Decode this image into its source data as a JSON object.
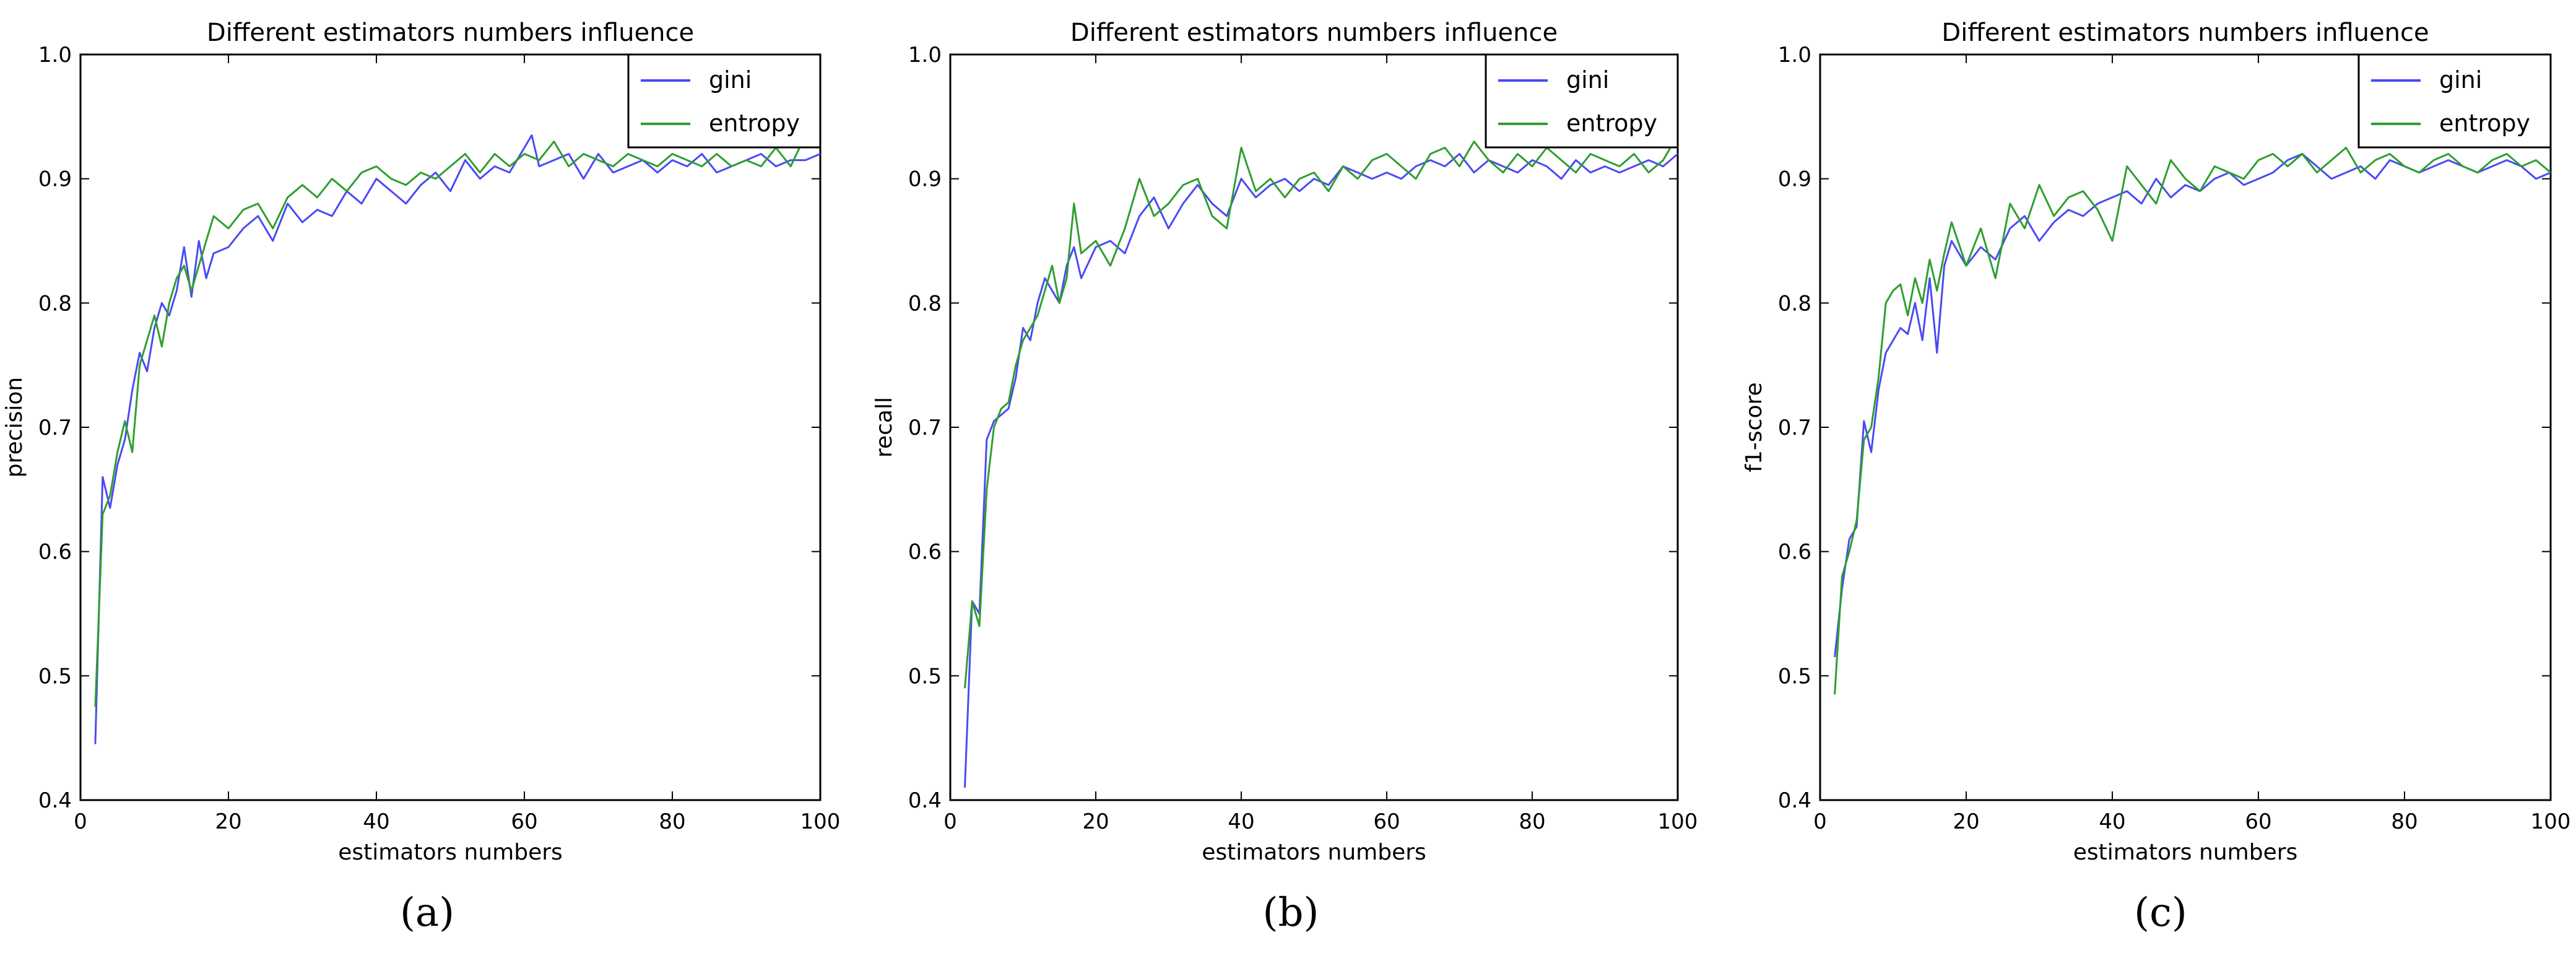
{
  "colors": {
    "gini": "#4a4af5",
    "entropy": "#2e9e2e"
  },
  "panels": [
    {
      "sub_label": "(a)"
    },
    {
      "sub_label": "(b)"
    },
    {
      "sub_label": "(c)"
    }
  ],
  "chart_data": [
    {
      "type": "line",
      "title": "Different estimators numbers influence",
      "xlabel": "estimators numbers",
      "ylabel": "precision",
      "xlim": [
        0,
        100
      ],
      "ylim": [
        0.4,
        1.0
      ],
      "xticks": [
        0,
        20,
        40,
        60,
        80,
        100
      ],
      "yticks": [
        0.4,
        0.5,
        0.6,
        0.7,
        0.8,
        0.9,
        1.0
      ],
      "legend_position": "top-right",
      "grid": false,
      "series": [
        {
          "name": "gini",
          "x": [
            2,
            3,
            4,
            5,
            6,
            7,
            8,
            9,
            10,
            11,
            12,
            13,
            14,
            15,
            16,
            17,
            18,
            20,
            22,
            24,
            26,
            28,
            30,
            32,
            34,
            36,
            38,
            40,
            42,
            44,
            46,
            48,
            50,
            52,
            54,
            56,
            58,
            60,
            61,
            62,
            64,
            66,
            68,
            70,
            72,
            74,
            76,
            78,
            80,
            82,
            84,
            86,
            88,
            90,
            92,
            94,
            96,
            98,
            100
          ],
          "values": [
            0.445,
            0.66,
            0.635,
            0.67,
            0.69,
            0.73,
            0.76,
            0.745,
            0.78,
            0.8,
            0.79,
            0.81,
            0.845,
            0.805,
            0.85,
            0.82,
            0.84,
            0.845,
            0.86,
            0.87,
            0.85,
            0.88,
            0.865,
            0.875,
            0.87,
            0.89,
            0.88,
            0.9,
            0.89,
            0.88,
            0.895,
            0.905,
            0.89,
            0.915,
            0.9,
            0.91,
            0.905,
            0.925,
            0.935,
            0.91,
            0.915,
            0.92,
            0.9,
            0.92,
            0.905,
            0.91,
            0.915,
            0.905,
            0.915,
            0.91,
            0.92,
            0.905,
            0.91,
            0.915,
            0.92,
            0.91,
            0.915,
            0.915,
            0.92
          ]
        },
        {
          "name": "entropy",
          "x": [
            2,
            3,
            4,
            5,
            6,
            7,
            8,
            9,
            10,
            11,
            12,
            13,
            14,
            15,
            16,
            17,
            18,
            20,
            22,
            24,
            26,
            28,
            30,
            32,
            34,
            36,
            38,
            40,
            42,
            44,
            46,
            48,
            50,
            52,
            54,
            56,
            58,
            60,
            62,
            64,
            66,
            68,
            70,
            72,
            74,
            76,
            78,
            80,
            82,
            84,
            86,
            88,
            90,
            92,
            94,
            96,
            98,
            100
          ],
          "values": [
            0.475,
            0.63,
            0.645,
            0.68,
            0.705,
            0.68,
            0.75,
            0.77,
            0.79,
            0.765,
            0.8,
            0.82,
            0.83,
            0.81,
            0.83,
            0.85,
            0.87,
            0.86,
            0.875,
            0.88,
            0.86,
            0.885,
            0.895,
            0.885,
            0.9,
            0.89,
            0.905,
            0.91,
            0.9,
            0.895,
            0.905,
            0.9,
            0.91,
            0.92,
            0.905,
            0.92,
            0.91,
            0.92,
            0.915,
            0.93,
            0.91,
            0.92,
            0.915,
            0.91,
            0.92,
            0.915,
            0.91,
            0.92,
            0.915,
            0.91,
            0.92,
            0.91,
            0.915,
            0.91,
            0.925,
            0.91,
            0.935,
            0.935
          ]
        }
      ]
    },
    {
      "type": "line",
      "title": "Different estimators numbers influence",
      "xlabel": "estimators numbers",
      "ylabel": "recall",
      "xlim": [
        0,
        100
      ],
      "ylim": [
        0.4,
        1.0
      ],
      "xticks": [
        0,
        20,
        40,
        60,
        80,
        100
      ],
      "yticks": [
        0.4,
        0.5,
        0.6,
        0.7,
        0.8,
        0.9,
        1.0
      ],
      "legend_position": "top-right",
      "grid": false,
      "series": [
        {
          "name": "gini",
          "x": [
            2,
            3,
            4,
            5,
            6,
            7,
            8,
            9,
            10,
            11,
            12,
            13,
            14,
            15,
            16,
            17,
            18,
            20,
            22,
            24,
            26,
            28,
            30,
            32,
            34,
            36,
            38,
            40,
            42,
            44,
            46,
            48,
            50,
            52,
            54,
            56,
            58,
            60,
            62,
            64,
            66,
            68,
            70,
            72,
            74,
            76,
            78,
            80,
            82,
            84,
            86,
            88,
            90,
            92,
            94,
            96,
            98,
            100
          ],
          "values": [
            0.41,
            0.56,
            0.55,
            0.69,
            0.705,
            0.71,
            0.715,
            0.74,
            0.78,
            0.77,
            0.8,
            0.82,
            0.81,
            0.8,
            0.83,
            0.845,
            0.82,
            0.845,
            0.85,
            0.84,
            0.87,
            0.885,
            0.86,
            0.88,
            0.895,
            0.88,
            0.87,
            0.9,
            0.885,
            0.895,
            0.9,
            0.89,
            0.9,
            0.895,
            0.91,
            0.905,
            0.9,
            0.905,
            0.9,
            0.91,
            0.915,
            0.91,
            0.92,
            0.905,
            0.915,
            0.91,
            0.905,
            0.915,
            0.91,
            0.9,
            0.915,
            0.905,
            0.91,
            0.905,
            0.91,
            0.915,
            0.91,
            0.92
          ]
        },
        {
          "name": "entropy",
          "x": [
            2,
            3,
            4,
            5,
            6,
            7,
            8,
            9,
            10,
            11,
            12,
            13,
            14,
            15,
            16,
            17,
            18,
            20,
            22,
            24,
            26,
            28,
            30,
            32,
            34,
            36,
            38,
            40,
            42,
            44,
            46,
            48,
            50,
            52,
            54,
            56,
            58,
            60,
            62,
            64,
            66,
            68,
            70,
            72,
            74,
            76,
            78,
            80,
            82,
            84,
            86,
            88,
            90,
            92,
            94,
            96,
            98,
            100
          ],
          "values": [
            0.49,
            0.56,
            0.54,
            0.65,
            0.7,
            0.715,
            0.72,
            0.75,
            0.77,
            0.78,
            0.79,
            0.81,
            0.83,
            0.8,
            0.82,
            0.88,
            0.84,
            0.85,
            0.83,
            0.86,
            0.9,
            0.87,
            0.88,
            0.895,
            0.9,
            0.87,
            0.86,
            0.925,
            0.89,
            0.9,
            0.885,
            0.9,
            0.905,
            0.89,
            0.91,
            0.9,
            0.915,
            0.92,
            0.91,
            0.9,
            0.92,
            0.925,
            0.91,
            0.93,
            0.915,
            0.905,
            0.92,
            0.91,
            0.925,
            0.915,
            0.905,
            0.92,
            0.915,
            0.91,
            0.92,
            0.905,
            0.915,
            0.935
          ]
        }
      ]
    },
    {
      "type": "line",
      "title": "Different estimators numbers influence",
      "xlabel": "estimators numbers",
      "ylabel": "f1-score",
      "xlim": [
        0,
        100
      ],
      "ylim": [
        0.4,
        1.0
      ],
      "xticks": [
        0,
        20,
        40,
        60,
        80,
        100
      ],
      "yticks": [
        0.4,
        0.5,
        0.6,
        0.7,
        0.8,
        0.9,
        1.0
      ],
      "legend_position": "top-right",
      "grid": false,
      "series": [
        {
          "name": "gini",
          "x": [
            2,
            3,
            4,
            5,
            6,
            7,
            8,
            9,
            10,
            11,
            12,
            13,
            14,
            15,
            16,
            17,
            18,
            20,
            22,
            24,
            26,
            28,
            30,
            32,
            34,
            36,
            38,
            40,
            42,
            44,
            46,
            48,
            50,
            52,
            54,
            56,
            58,
            60,
            62,
            64,
            66,
            68,
            70,
            72,
            74,
            76,
            78,
            80,
            82,
            84,
            86,
            88,
            90,
            92,
            94,
            96,
            98,
            100
          ],
          "values": [
            0.515,
            0.57,
            0.61,
            0.62,
            0.705,
            0.68,
            0.73,
            0.76,
            0.77,
            0.78,
            0.775,
            0.8,
            0.77,
            0.82,
            0.76,
            0.83,
            0.85,
            0.83,
            0.845,
            0.835,
            0.86,
            0.87,
            0.85,
            0.865,
            0.875,
            0.87,
            0.88,
            0.885,
            0.89,
            0.88,
            0.9,
            0.885,
            0.895,
            0.89,
            0.9,
            0.905,
            0.895,
            0.9,
            0.905,
            0.915,
            0.92,
            0.91,
            0.9,
            0.905,
            0.91,
            0.9,
            0.915,
            0.91,
            0.905,
            0.91,
            0.915,
            0.91,
            0.905,
            0.91,
            0.915,
            0.91,
            0.9,
            0.905
          ]
        },
        {
          "name": "entropy",
          "x": [
            2,
            3,
            4,
            5,
            6,
            7,
            8,
            9,
            10,
            11,
            12,
            13,
            14,
            15,
            16,
            17,
            18,
            20,
            22,
            24,
            26,
            28,
            30,
            32,
            34,
            36,
            38,
            40,
            42,
            44,
            46,
            48,
            50,
            52,
            54,
            56,
            58,
            60,
            62,
            64,
            66,
            68,
            70,
            72,
            74,
            76,
            78,
            80,
            82,
            84,
            86,
            88,
            90,
            92,
            94,
            96,
            98,
            100
          ],
          "values": [
            0.485,
            0.58,
            0.6,
            0.625,
            0.69,
            0.7,
            0.74,
            0.8,
            0.81,
            0.815,
            0.79,
            0.82,
            0.8,
            0.835,
            0.81,
            0.84,
            0.865,
            0.83,
            0.86,
            0.82,
            0.88,
            0.86,
            0.895,
            0.87,
            0.885,
            0.89,
            0.875,
            0.85,
            0.91,
            0.895,
            0.88,
            0.915,
            0.9,
            0.89,
            0.91,
            0.905,
            0.9,
            0.915,
            0.92,
            0.91,
            0.92,
            0.905,
            0.915,
            0.925,
            0.905,
            0.915,
            0.92,
            0.91,
            0.905,
            0.915,
            0.92,
            0.91,
            0.905,
            0.915,
            0.92,
            0.91,
            0.915,
            0.905
          ]
        }
      ]
    }
  ]
}
